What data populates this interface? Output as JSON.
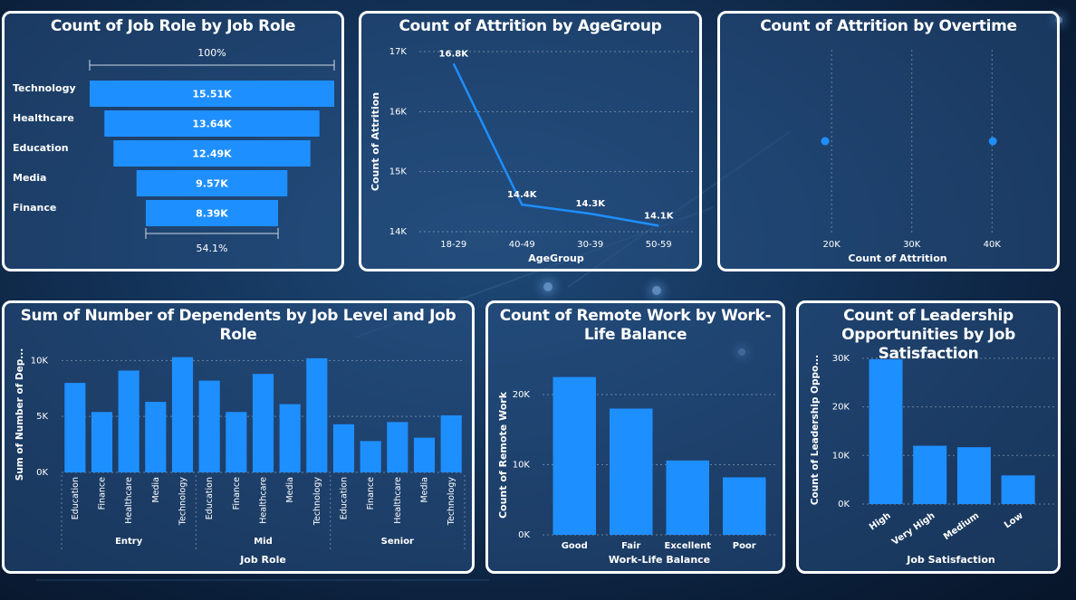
{
  "theme": {
    "accent": "#1e8fff",
    "border": "#ffffff",
    "line": "#1e8fff"
  },
  "funnel": {
    "title": "Count of Job Role by Job Role",
    "top_pct": "100%",
    "bottom_pct": "54.1%"
  },
  "age": {
    "title": "Count of Attrition by AgeGroup",
    "x_title": "AgeGroup",
    "y_title": "Count of Attrition",
    "y_ticks": [
      "17K",
      "16K",
      "15K",
      "14K"
    ]
  },
  "overtime": {
    "title": "Count of Attrition by Overtime",
    "x_title": "Count of Attrition",
    "x_ticks": [
      "20K",
      "30K",
      "40K"
    ]
  },
  "dependents": {
    "title": "Sum of Number of Dependents by Job Level and Job Role",
    "x_title": "Job Role",
    "y_title": "Sum of Number of Dep...",
    "y_ticks": [
      "10K",
      "5K",
      "0K"
    ],
    "groups": [
      "Entry",
      "Mid",
      "Senior"
    ]
  },
  "remote": {
    "title": "Count of Remote Work by Work-Life Balance",
    "x_title": "Work-Life Balance",
    "y_title": "Count of Remote Work",
    "y_ticks": [
      "20K",
      "10K",
      "0K"
    ]
  },
  "leadership": {
    "title": "Count of Leadership Opportunities by Job Satisfaction",
    "x_title": "Job Satisfaction",
    "y_title": "Count of Leadership Oppo...",
    "y_ticks": [
      "30K",
      "20K",
      "10K",
      "0K"
    ]
  },
  "chart_data": [
    {
      "type": "funnel",
      "title": "Count of Job Role by Job Role",
      "categories": [
        "Technology",
        "Healthcare",
        "Education",
        "Media",
        "Finance"
      ],
      "values": [
        15510,
        13640,
        12490,
        9570,
        8390
      ],
      "labels": [
        "15.51K",
        "13.64K",
        "12.49K",
        "9.57K",
        "8.39K"
      ],
      "annotations": [
        "100%",
        "54.1%"
      ]
    },
    {
      "type": "line",
      "title": "Count of Attrition by AgeGroup",
      "categories": [
        "18-29",
        "40-49",
        "30-39",
        "50-59"
      ],
      "values": [
        16800,
        14450,
        14300,
        14100
      ],
      "labels": [
        "16.8K",
        "14.4K",
        "14.3K",
        "14.1K"
      ],
      "xlabel": "AgeGroup",
      "ylabel": "Count of Attrition",
      "ylim": [
        14000,
        17000
      ]
    },
    {
      "type": "scatter",
      "title": "Count of Attrition by Overtime",
      "x": [
        19200,
        40100
      ],
      "xlabel": "Count of Attrition",
      "xlim": [
        14000,
        42000
      ]
    },
    {
      "type": "bar",
      "title": "Sum of Number of Dependents by Job Level and Job Role",
      "groups": [
        "Entry",
        "Mid",
        "Senior"
      ],
      "categories": [
        "Education",
        "Finance",
        "Healthcare",
        "Media",
        "Technology"
      ],
      "values": [
        [
          8000,
          5400,
          9100,
          6300,
          10300
        ],
        [
          8200,
          5400,
          8800,
          6100,
          10200
        ],
        [
          4300,
          2800,
          4500,
          3100,
          5100
        ]
      ],
      "xlabel": "Job Role",
      "ylabel": "Sum of Number of Dep...",
      "ylim": [
        0,
        11000
      ]
    },
    {
      "type": "bar",
      "title": "Count of Remote Work by Work-Life Balance",
      "categories": [
        "Good",
        "Fair",
        "Excellent",
        "Poor"
      ],
      "values": [
        22500,
        18000,
        10600,
        8200
      ],
      "xlabel": "Work-Life Balance",
      "ylabel": "Count of Remote Work",
      "ylim": [
        0,
        25000
      ]
    },
    {
      "type": "bar",
      "title": "Count of Leadership Opportunities by Job Satisfaction",
      "categories": [
        "High",
        "Very High",
        "Medium",
        "Low"
      ],
      "values": [
        29800,
        12000,
        11700,
        5900
      ],
      "xlabel": "Job Satisfaction",
      "ylabel": "Count of Leadership Oppo...",
      "ylim": [
        0,
        31000
      ]
    }
  ]
}
